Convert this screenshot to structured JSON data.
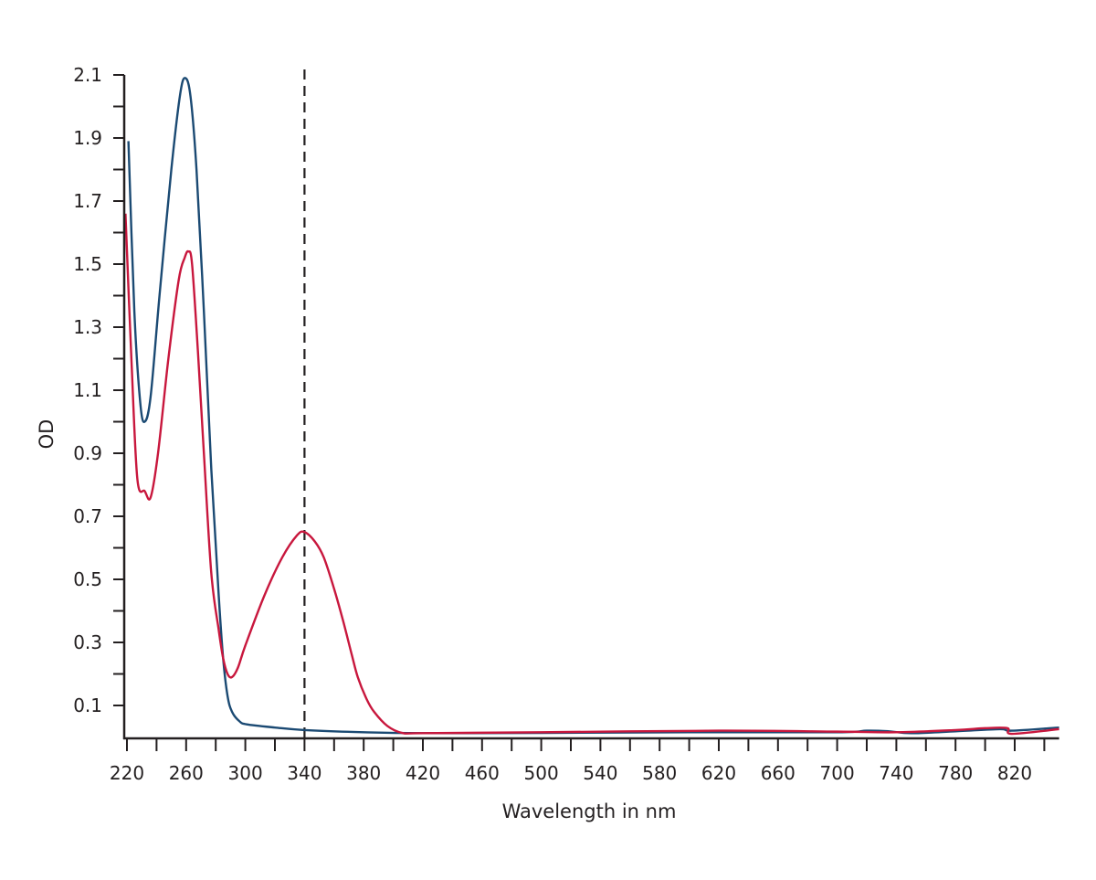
{
  "chart_data": {
    "type": "line",
    "title": "",
    "xlabel": "Wavelength in nm",
    "ylabel": "OD",
    "xlim": [
      220,
      850
    ],
    "ylim": [
      0,
      2.1
    ],
    "x_ticks": [
      220,
      260,
      300,
      340,
      380,
      420,
      460,
      500,
      540,
      580,
      620,
      660,
      700,
      740,
      780,
      820
    ],
    "x_minor_step": 20,
    "y_ticks": [
      0.1,
      0.3,
      0.5,
      0.7,
      0.9,
      1.1,
      1.3,
      1.5,
      1.7,
      1.9,
      2.1
    ],
    "y_tick_labels": [
      "0.1",
      "0.3",
      "0.5",
      "0.7",
      "0.9",
      "1.1",
      "1.3",
      "1.5",
      "1.7",
      "1.9",
      "2.1"
    ],
    "y_minor_step": 0.1,
    "grid": false,
    "reference_line": {
      "x": 340,
      "style": "dashed",
      "color": "#231f20"
    },
    "series": [
      {
        "color": "#1b4a73",
        "points": [
          [
            221,
            1.89
          ],
          [
            225,
            1.35
          ],
          [
            229,
            1.06
          ],
          [
            232,
            1.0
          ],
          [
            236,
            1.08
          ],
          [
            242,
            1.4
          ],
          [
            250,
            1.8
          ],
          [
            256,
            2.04
          ],
          [
            259.5,
            2.09
          ],
          [
            263,
            2.03
          ],
          [
            267,
            1.8
          ],
          [
            272,
            1.35
          ],
          [
            277,
            0.85
          ],
          [
            282,
            0.45
          ],
          [
            285,
            0.25
          ],
          [
            288,
            0.13
          ],
          [
            291,
            0.08
          ],
          [
            296,
            0.05
          ],
          [
            301,
            0.04
          ],
          [
            320,
            0.03
          ],
          [
            340,
            0.022
          ],
          [
            380,
            0.015
          ],
          [
            420,
            0.012
          ],
          [
            500,
            0.013
          ],
          [
            600,
            0.015
          ],
          [
            700,
            0.015
          ],
          [
            720,
            0.02
          ],
          [
            735,
            0.018
          ],
          [
            750,
            0.012
          ],
          [
            780,
            0.018
          ],
          [
            810,
            0.025
          ],
          [
            818,
            0.02
          ],
          [
            850,
            0.03
          ]
        ]
      },
      {
        "color": "#c8173d",
        "points": [
          [
            219,
            1.66
          ],
          [
            223,
            1.2
          ],
          [
            227,
            0.82
          ],
          [
            232,
            0.78
          ],
          [
            236,
            0.76
          ],
          [
            241,
            0.9
          ],
          [
            248,
            1.2
          ],
          [
            255,
            1.45
          ],
          [
            259,
            1.52
          ],
          [
            261.5,
            1.54
          ],
          [
            264,
            1.5
          ],
          [
            268,
            1.22
          ],
          [
            272,
            0.9
          ],
          [
            277,
            0.52
          ],
          [
            282,
            0.34
          ],
          [
            285,
            0.25
          ],
          [
            288,
            0.2
          ],
          [
            291,
            0.19
          ],
          [
            295,
            0.22
          ],
          [
            300,
            0.29
          ],
          [
            313,
            0.45
          ],
          [
            325,
            0.57
          ],
          [
            335,
            0.64
          ],
          [
            340,
            0.65
          ],
          [
            347,
            0.62
          ],
          [
            353,
            0.57
          ],
          [
            360,
            0.47
          ],
          [
            366,
            0.37
          ],
          [
            372,
            0.26
          ],
          [
            376,
            0.19
          ],
          [
            382,
            0.12
          ],
          [
            387,
            0.08
          ],
          [
            396,
            0.035
          ],
          [
            406,
            0.013
          ],
          [
            420,
            0.012
          ],
          [
            500,
            0.015
          ],
          [
            620,
            0.02
          ],
          [
            700,
            0.017
          ],
          [
            740,
            0.015
          ],
          [
            780,
            0.022
          ],
          [
            800,
            0.028
          ],
          [
            815,
            0.028
          ],
          [
            818,
            0.01
          ],
          [
            850,
            0.025
          ]
        ]
      }
    ]
  }
}
